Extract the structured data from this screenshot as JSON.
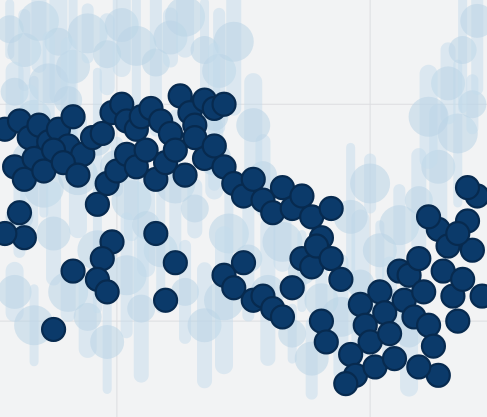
{
  "chart_data": {
    "type": "scatter",
    "title": "",
    "xlabel": "",
    "ylabel": "",
    "xlim": [
      0,
      100
    ],
    "ylim": [
      0,
      100
    ],
    "grid": true,
    "grid_x": [
      24,
      76
    ],
    "grid_y": [
      23,
      75
    ],
    "colors": {
      "background": "#f2f3f4",
      "background_series": "#b9d3e6",
      "foreground_series": "#0b3a6a",
      "foreground_edge": "#072a4f"
    },
    "series": [
      {
        "role": "background-distribution",
        "points": [
          {
            "x": 2,
            "y": 93
          },
          {
            "x": 5,
            "y": 88
          },
          {
            "x": 8,
            "y": 95
          },
          {
            "x": 12,
            "y": 90
          },
          {
            "x": 15,
            "y": 84
          },
          {
            "x": 18,
            "y": 92
          },
          {
            "x": 22,
            "y": 87
          },
          {
            "x": 25,
            "y": 94
          },
          {
            "x": 28,
            "y": 89
          },
          {
            "x": 32,
            "y": 85
          },
          {
            "x": 35,
            "y": 91
          },
          {
            "x": 38,
            "y": 96
          },
          {
            "x": 42,
            "y": 88
          },
          {
            "x": 45,
            "y": 83
          },
          {
            "x": 48,
            "y": 90
          },
          {
            "x": 3,
            "y": 78
          },
          {
            "x": 7,
            "y": 72
          },
          {
            "x": 10,
            "y": 80
          },
          {
            "x": 14,
            "y": 76
          },
          {
            "x": 6,
            "y": 62
          },
          {
            "x": 9,
            "y": 55
          },
          {
            "x": 4,
            "y": 48
          },
          {
            "x": 11,
            "y": 44
          },
          {
            "x": 16,
            "y": 58
          },
          {
            "x": 20,
            "y": 66
          },
          {
            "x": 24,
            "y": 60
          },
          {
            "x": 27,
            "y": 52
          },
          {
            "x": 30,
            "y": 46
          },
          {
            "x": 33,
            "y": 40
          },
          {
            "x": 36,
            "y": 56
          },
          {
            "x": 40,
            "y": 50
          },
          {
            "x": 44,
            "y": 62
          },
          {
            "x": 47,
            "y": 44
          },
          {
            "x": 51,
            "y": 38
          },
          {
            "x": 55,
            "y": 30
          },
          {
            "x": 58,
            "y": 42
          },
          {
            "x": 62,
            "y": 35
          },
          {
            "x": 66,
            "y": 28
          },
          {
            "x": 70,
            "y": 24
          },
          {
            "x": 74,
            "y": 32
          },
          {
            "x": 78,
            "y": 40
          },
          {
            "x": 82,
            "y": 46
          },
          {
            "x": 86,
            "y": 52
          },
          {
            "x": 90,
            "y": 60
          },
          {
            "x": 94,
            "y": 68
          },
          {
            "x": 97,
            "y": 75
          },
          {
            "x": 92,
            "y": 80
          },
          {
            "x": 88,
            "y": 72
          },
          {
            "x": 95,
            "y": 88
          },
          {
            "x": 98,
            "y": 95
          },
          {
            "x": 14,
            "y": 30
          },
          {
            "x": 18,
            "y": 24
          },
          {
            "x": 22,
            "y": 18
          },
          {
            "x": 26,
            "y": 34
          },
          {
            "x": 29,
            "y": 26
          },
          {
            "x": 3,
            "y": 30
          },
          {
            "x": 7,
            "y": 22
          },
          {
            "x": 38,
            "y": 30
          },
          {
            "x": 42,
            "y": 22
          },
          {
            "x": 46,
            "y": 28
          },
          {
            "x": 60,
            "y": 20
          },
          {
            "x": 64,
            "y": 14
          },
          {
            "x": 80,
            "y": 26
          },
          {
            "x": 84,
            "y": 20
          },
          {
            "x": 72,
            "y": 48
          },
          {
            "x": 76,
            "y": 56
          },
          {
            "x": 54,
            "y": 58
          },
          {
            "x": 52,
            "y": 70
          },
          {
            "x": 20,
            "y": 40
          },
          {
            "x": 44,
            "y": 72
          }
        ]
      },
      {
        "role": "foreground-samples",
        "points": [
          {
            "x": 1,
            "y": 69
          },
          {
            "x": 4,
            "y": 71
          },
          {
            "x": 6,
            "y": 67
          },
          {
            "x": 8,
            "y": 70
          },
          {
            "x": 10,
            "y": 66
          },
          {
            "x": 12,
            "y": 69
          },
          {
            "x": 14,
            "y": 65
          },
          {
            "x": 15,
            "y": 72
          },
          {
            "x": 17,
            "y": 63
          },
          {
            "x": 19,
            "y": 67
          },
          {
            "x": 21,
            "y": 68
          },
          {
            "x": 23,
            "y": 73
          },
          {
            "x": 25,
            "y": 75
          },
          {
            "x": 26,
            "y": 71
          },
          {
            "x": 28,
            "y": 69
          },
          {
            "x": 29,
            "y": 72
          },
          {
            "x": 31,
            "y": 74
          },
          {
            "x": 33,
            "y": 71
          },
          {
            "x": 35,
            "y": 68
          },
          {
            "x": 37,
            "y": 77
          },
          {
            "x": 39,
            "y": 73
          },
          {
            "x": 40,
            "y": 70
          },
          {
            "x": 42,
            "y": 76
          },
          {
            "x": 44,
            "y": 74
          },
          {
            "x": 46,
            "y": 75
          },
          {
            "x": 3,
            "y": 60
          },
          {
            "x": 5,
            "y": 57
          },
          {
            "x": 7,
            "y": 62
          },
          {
            "x": 9,
            "y": 59
          },
          {
            "x": 11,
            "y": 64
          },
          {
            "x": 13,
            "y": 61
          },
          {
            "x": 16,
            "y": 58
          },
          {
            "x": 20,
            "y": 51
          },
          {
            "x": 22,
            "y": 56
          },
          {
            "x": 24,
            "y": 59
          },
          {
            "x": 26,
            "y": 63
          },
          {
            "x": 28,
            "y": 60
          },
          {
            "x": 30,
            "y": 64
          },
          {
            "x": 32,
            "y": 57
          },
          {
            "x": 34,
            "y": 61
          },
          {
            "x": 36,
            "y": 64
          },
          {
            "x": 38,
            "y": 58
          },
          {
            "x": 40,
            "y": 67
          },
          {
            "x": 42,
            "y": 62
          },
          {
            "x": 44,
            "y": 65
          },
          {
            "x": 46,
            "y": 60
          },
          {
            "x": 48,
            "y": 56
          },
          {
            "x": 50,
            "y": 53
          },
          {
            "x": 52,
            "y": 57
          },
          {
            "x": 54,
            "y": 52
          },
          {
            "x": 56,
            "y": 49
          },
          {
            "x": 58,
            "y": 55
          },
          {
            "x": 60,
            "y": 50
          },
          {
            "x": 62,
            "y": 53
          },
          {
            "x": 64,
            "y": 48
          },
          {
            "x": 66,
            "y": 43
          },
          {
            "x": 68,
            "y": 50
          },
          {
            "x": 4,
            "y": 49
          },
          {
            "x": 5,
            "y": 43
          },
          {
            "x": 1,
            "y": 44
          },
          {
            "x": 23,
            "y": 42
          },
          {
            "x": 21,
            "y": 38
          },
          {
            "x": 15,
            "y": 35
          },
          {
            "x": 20,
            "y": 33
          },
          {
            "x": 22,
            "y": 30
          },
          {
            "x": 36,
            "y": 37
          },
          {
            "x": 46,
            "y": 34
          },
          {
            "x": 48,
            "y": 31
          },
          {
            "x": 50,
            "y": 37
          },
          {
            "x": 52,
            "y": 28
          },
          {
            "x": 54,
            "y": 29
          },
          {
            "x": 56,
            "y": 26
          },
          {
            "x": 58,
            "y": 24
          },
          {
            "x": 60,
            "y": 31
          },
          {
            "x": 62,
            "y": 38
          },
          {
            "x": 64,
            "y": 36
          },
          {
            "x": 65,
            "y": 41
          },
          {
            "x": 66,
            "y": 23
          },
          {
            "x": 67,
            "y": 18
          },
          {
            "x": 68,
            "y": 38
          },
          {
            "x": 70,
            "y": 33
          },
          {
            "x": 72,
            "y": 15
          },
          {
            "x": 73,
            "y": 10
          },
          {
            "x": 74,
            "y": 27
          },
          {
            "x": 75,
            "y": 22
          },
          {
            "x": 76,
            "y": 18
          },
          {
            "x": 77,
            "y": 12
          },
          {
            "x": 78,
            "y": 30
          },
          {
            "x": 79,
            "y": 25
          },
          {
            "x": 80,
            "y": 20
          },
          {
            "x": 81,
            "y": 14
          },
          {
            "x": 82,
            "y": 35
          },
          {
            "x": 83,
            "y": 28
          },
          {
            "x": 84,
            "y": 34
          },
          {
            "x": 85,
            "y": 24
          },
          {
            "x": 86,
            "y": 38
          },
          {
            "x": 87,
            "y": 30
          },
          {
            "x": 88,
            "y": 22
          },
          {
            "x": 89,
            "y": 17
          },
          {
            "x": 90,
            "y": 10
          },
          {
            "x": 90,
            "y": 45
          },
          {
            "x": 91,
            "y": 35
          },
          {
            "x": 92,
            "y": 41
          },
          {
            "x": 93,
            "y": 29
          },
          {
            "x": 94,
            "y": 23
          },
          {
            "x": 95,
            "y": 33
          },
          {
            "x": 96,
            "y": 47
          },
          {
            "x": 97,
            "y": 40
          },
          {
            "x": 98,
            "y": 53
          },
          {
            "x": 99,
            "y": 29
          },
          {
            "x": 96,
            "y": 55
          },
          {
            "x": 94,
            "y": 44
          },
          {
            "x": 71,
            "y": 8
          },
          {
            "x": 86,
            "y": 12
          },
          {
            "x": 88,
            "y": 48
          },
          {
            "x": 32,
            "y": 44
          },
          {
            "x": 34,
            "y": 28
          },
          {
            "x": 11,
            "y": 21
          }
        ]
      }
    ]
  }
}
